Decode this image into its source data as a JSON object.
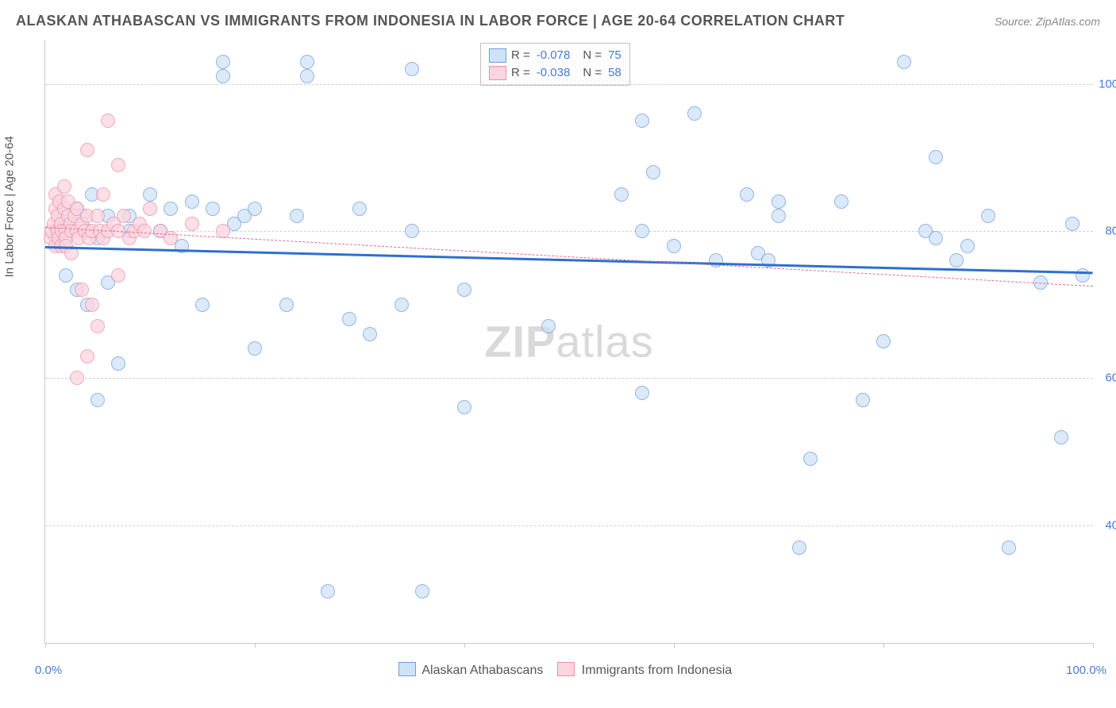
{
  "header": {
    "title": "ALASKAN ATHABASCAN VS IMMIGRANTS FROM INDONESIA IN LABOR FORCE | AGE 20-64 CORRELATION CHART",
    "source": "Source: ZipAtlas.com"
  },
  "chart": {
    "type": "scatter",
    "background_color": "#ffffff",
    "grid_color": "#d0d0d0",
    "axis_color": "#c8c8c8",
    "xlim": [
      0,
      100
    ],
    "ylim": [
      24,
      106
    ],
    "x_ticks": [
      0,
      20,
      40,
      60,
      80,
      100
    ],
    "y_ticks": [
      40,
      60,
      80,
      100
    ],
    "y_tick_labels": [
      "40.0%",
      "60.0%",
      "80.0%",
      "100.0%"
    ],
    "x_min_label": "0.0%",
    "x_max_label": "100.0%",
    "y_axis_title": "In Labor Force | Age 20-64",
    "tick_label_color": "#4a7bd0",
    "axis_title_color": "#555555",
    "marker_radius": 9,
    "marker_border_width": 1.2,
    "series": [
      {
        "name": "Alaskan Athabascans",
        "fill": "#cfe2f8",
        "stroke": "#6f9fd8",
        "fill_opacity": 0.75,
        "r_value": "-0.078",
        "n_value": "75",
        "trend": {
          "x1": 0,
          "y1": 78.0,
          "x2": 100,
          "y2": 74.5,
          "color": "#2e6fd0",
          "width": 3,
          "dash": "solid"
        },
        "points": [
          [
            1,
            79
          ],
          [
            1.5,
            81
          ],
          [
            2,
            80
          ],
          [
            2,
            74
          ],
          [
            3,
            83
          ],
          [
            3,
            72
          ],
          [
            3.5,
            82
          ],
          [
            4,
            80
          ],
          [
            4,
            70
          ],
          [
            4.5,
            85
          ],
          [
            5,
            57
          ],
          [
            5,
            79
          ],
          [
            6,
            82
          ],
          [
            6,
            73
          ],
          [
            7,
            62
          ],
          [
            8,
            82
          ],
          [
            8,
            80
          ],
          [
            10,
            85
          ],
          [
            11,
            80
          ],
          [
            12,
            83
          ],
          [
            13,
            78
          ],
          [
            14,
            84
          ],
          [
            15,
            70
          ],
          [
            16,
            83
          ],
          [
            17,
            103
          ],
          [
            17,
            101
          ],
          [
            18,
            81
          ],
          [
            19,
            82
          ],
          [
            20,
            64
          ],
          [
            20,
            83
          ],
          [
            23,
            70
          ],
          [
            24,
            82
          ],
          [
            25,
            101
          ],
          [
            25,
            103
          ],
          [
            27,
            31
          ],
          [
            29,
            68
          ],
          [
            30,
            83
          ],
          [
            31,
            66
          ],
          [
            34,
            70
          ],
          [
            35,
            80
          ],
          [
            35,
            102
          ],
          [
            36,
            31
          ],
          [
            40,
            56
          ],
          [
            40,
            72
          ],
          [
            48,
            67
          ],
          [
            55,
            85
          ],
          [
            57,
            80
          ],
          [
            57,
            95
          ],
          [
            58,
            88
          ],
          [
            57,
            58
          ],
          [
            60,
            78
          ],
          [
            62,
            96
          ],
          [
            64,
            76
          ],
          [
            67,
            85
          ],
          [
            68,
            77
          ],
          [
            69,
            76
          ],
          [
            70,
            84
          ],
          [
            70,
            82
          ],
          [
            72,
            37
          ],
          [
            73,
            49
          ],
          [
            76,
            84
          ],
          [
            78,
            57
          ],
          [
            80,
            65
          ],
          [
            82,
            103
          ],
          [
            84,
            80
          ],
          [
            85,
            79
          ],
          [
            85,
            90
          ],
          [
            87,
            76
          ],
          [
            88,
            78
          ],
          [
            90,
            82
          ],
          [
            92,
            37
          ],
          [
            95,
            73
          ],
          [
            97,
            52
          ],
          [
            98,
            81
          ],
          [
            99,
            74
          ]
        ]
      },
      {
        "name": "Immigrants from Indonesia",
        "fill": "#fbd5e0",
        "stroke": "#e890a8",
        "fill_opacity": 0.75,
        "r_value": "-0.038",
        "n_value": "58",
        "trend": {
          "x1": 0,
          "y1": 80.5,
          "x2": 100,
          "y2": 72.5,
          "color": "#e26a8a",
          "width": 1.5,
          "dash": "dashed"
        },
        "points": [
          [
            0.5,
            79
          ],
          [
            0.6,
            80
          ],
          [
            0.8,
            81
          ],
          [
            1,
            83
          ],
          [
            1,
            78
          ],
          [
            1,
            85
          ],
          [
            1.2,
            80
          ],
          [
            1.2,
            82
          ],
          [
            1.3,
            79
          ],
          [
            1.4,
            84
          ],
          [
            1.5,
            81
          ],
          [
            1.5,
            78
          ],
          [
            1.6,
            80
          ],
          [
            1.8,
            83
          ],
          [
            1.8,
            86
          ],
          [
            2,
            80
          ],
          [
            2,
            79
          ],
          [
            2,
            78
          ],
          [
            2.2,
            82
          ],
          [
            2.2,
            84
          ],
          [
            2.4,
            81
          ],
          [
            2.5,
            80
          ],
          [
            2.5,
            77
          ],
          [
            2.8,
            82
          ],
          [
            3,
            80
          ],
          [
            3,
            83
          ],
          [
            3,
            60
          ],
          [
            3.2,
            79
          ],
          [
            3.5,
            81
          ],
          [
            3.5,
            72
          ],
          [
            3.8,
            80
          ],
          [
            4,
            82
          ],
          [
            4,
            63
          ],
          [
            4,
            91
          ],
          [
            4.2,
            79
          ],
          [
            4.5,
            80
          ],
          [
            4.5,
            70
          ],
          [
            5,
            82
          ],
          [
            5,
            67
          ],
          [
            5.2,
            80
          ],
          [
            5.5,
            79
          ],
          [
            5.5,
            85
          ],
          [
            6,
            80
          ],
          [
            6,
            95
          ],
          [
            6.5,
            81
          ],
          [
            7,
            80
          ],
          [
            7,
            89
          ],
          [
            7,
            74
          ],
          [
            7.5,
            82
          ],
          [
            8,
            79
          ],
          [
            8.5,
            80
          ],
          [
            9,
            81
          ],
          [
            9.5,
            80
          ],
          [
            10,
            83
          ],
          [
            11,
            80
          ],
          [
            12,
            79
          ],
          [
            14,
            81
          ],
          [
            17,
            80
          ]
        ]
      }
    ],
    "legend": {
      "stat_r_label": "R =",
      "stat_n_label": "N ="
    },
    "bottom_legend_labels": [
      "Alaskan Athabascans",
      "Immigrants from Indonesia"
    ],
    "watermark": {
      "part1": "ZIP",
      "part2": "atlas"
    }
  }
}
